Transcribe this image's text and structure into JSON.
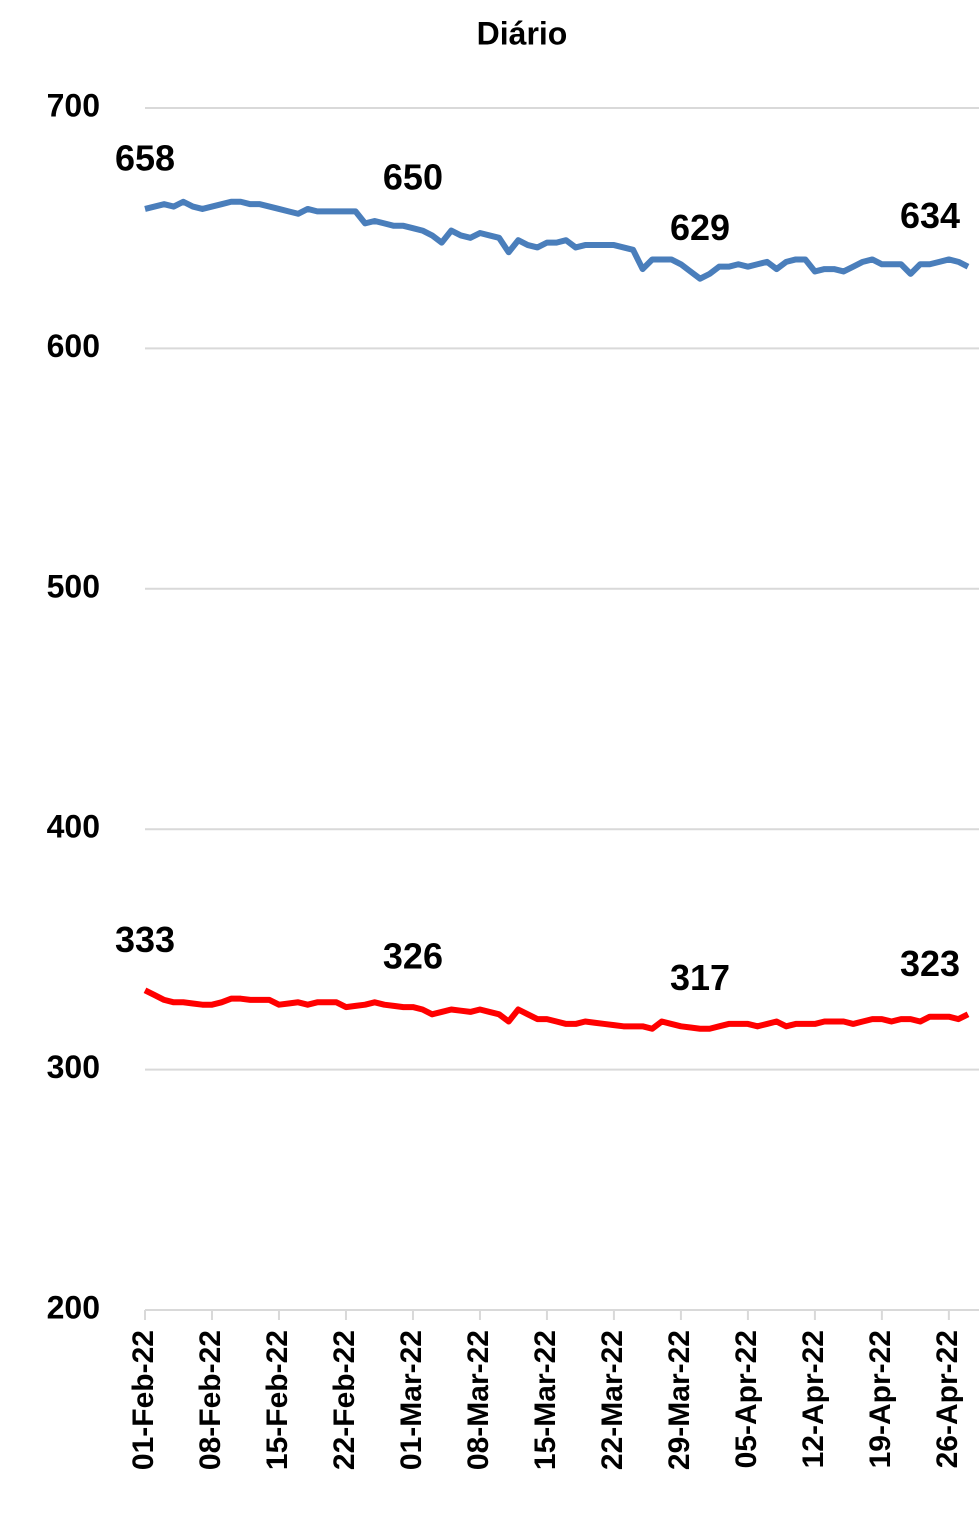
{
  "chart_data": {
    "type": "line",
    "title": "Diário",
    "categories": [
      "01-Feb-22",
      null,
      null,
      null,
      null,
      null,
      null,
      "08-Feb-22",
      null,
      null,
      null,
      null,
      null,
      null,
      "15-Feb-22",
      null,
      null,
      null,
      null,
      null,
      null,
      "22-Feb-22",
      null,
      null,
      null,
      null,
      null,
      null,
      "01-Mar-22",
      null,
      null,
      null,
      null,
      null,
      null,
      "08-Mar-22",
      null,
      null,
      null,
      null,
      null,
      null,
      "15-Mar-22",
      null,
      null,
      null,
      null,
      null,
      null,
      "22-Mar-22",
      null,
      null,
      null,
      null,
      null,
      null,
      "29-Mar-22",
      null,
      null,
      null,
      null,
      null,
      null,
      "05-Apr-22",
      null,
      null,
      null,
      null,
      null,
      null,
      "12-Apr-22",
      null,
      null,
      null,
      null,
      null,
      null,
      "19-Apr-22",
      null,
      null,
      null,
      null,
      null,
      null,
      "26-Apr-22",
      null,
      null
    ],
    "series": [
      {
        "color": "#4a7ebb",
        "values": [
          658,
          659,
          660,
          659,
          661,
          659,
          658,
          659,
          660,
          661,
          661,
          660,
          660,
          659,
          658,
          657,
          656,
          658,
          657,
          657,
          657,
          657,
          657,
          652,
          653,
          652,
          651,
          651,
          650,
          649,
          647,
          644,
          649,
          647,
          646,
          648,
          647,
          646,
          640,
          645,
          643,
          642,
          644,
          644,
          645,
          642,
          643,
          643,
          643,
          643,
          642,
          641,
          633,
          637,
          637,
          637,
          635,
          632,
          629,
          631,
          634,
          634,
          635,
          634,
          635,
          636,
          633,
          636,
          637,
          637,
          632,
          633,
          633,
          632,
          634,
          636,
          637,
          635,
          635,
          635,
          631,
          635,
          635,
          636,
          637,
          636,
          634
        ],
        "value_labels": [
          "658",
          null,
          null,
          null,
          null,
          null,
          null,
          null,
          null,
          null,
          null,
          null,
          null,
          null,
          null,
          null,
          null,
          null,
          null,
          null,
          null,
          null,
          null,
          null,
          null,
          null,
          null,
          null,
          "650",
          null,
          null,
          null,
          null,
          null,
          null,
          null,
          null,
          null,
          null,
          null,
          null,
          null,
          null,
          null,
          null,
          null,
          null,
          null,
          null,
          null,
          null,
          null,
          null,
          null,
          null,
          null,
          null,
          null,
          "629",
          null,
          null,
          null,
          null,
          null,
          null,
          null,
          null,
          null,
          null,
          null,
          null,
          null,
          null,
          null,
          null,
          null,
          null,
          null,
          null,
          null,
          null,
          null,
          null,
          null,
          null,
          null,
          "634"
        ]
      },
      {
        "color": "#ff0000",
        "values": [
          333,
          331,
          329,
          328,
          328,
          327.5,
          327,
          327,
          328,
          329.5,
          329.5,
          329,
          329,
          329,
          327,
          327.5,
          328,
          327,
          328,
          328,
          328,
          326,
          326.5,
          327,
          328,
          327,
          326.5,
          326,
          326,
          325,
          323,
          324,
          325,
          324.5,
          324,
          325,
          324,
          323,
          320,
          325,
          323,
          321,
          321,
          320,
          319,
          319,
          320,
          319.5,
          319,
          318.5,
          318,
          318,
          318,
          317,
          320,
          319,
          318,
          317.5,
          317,
          317,
          318,
          319,
          319,
          319,
          318,
          319,
          320,
          318,
          319,
          319,
          319,
          320,
          320,
          320,
          319,
          320,
          321,
          321,
          320,
          321,
          321,
          320,
          322,
          322,
          322,
          321,
          323
        ],
        "value_labels": [
          "333",
          null,
          null,
          null,
          null,
          null,
          null,
          null,
          null,
          null,
          null,
          null,
          null,
          null,
          null,
          null,
          null,
          null,
          null,
          null,
          null,
          null,
          null,
          null,
          null,
          null,
          null,
          null,
          "326",
          null,
          null,
          null,
          null,
          null,
          null,
          null,
          null,
          null,
          null,
          null,
          null,
          null,
          null,
          null,
          null,
          null,
          null,
          null,
          null,
          null,
          null,
          null,
          null,
          null,
          null,
          null,
          null,
          null,
          "317",
          null,
          null,
          null,
          null,
          null,
          null,
          null,
          null,
          null,
          null,
          null,
          null,
          null,
          null,
          null,
          null,
          null,
          null,
          null,
          null,
          null,
          null,
          null,
          null,
          null,
          null,
          null,
          "323"
        ]
      }
    ],
    "ylim": [
      200,
      700
    ],
    "yticks": [
      200,
      300,
      400,
      500,
      600,
      700
    ],
    "grid": true
  }
}
